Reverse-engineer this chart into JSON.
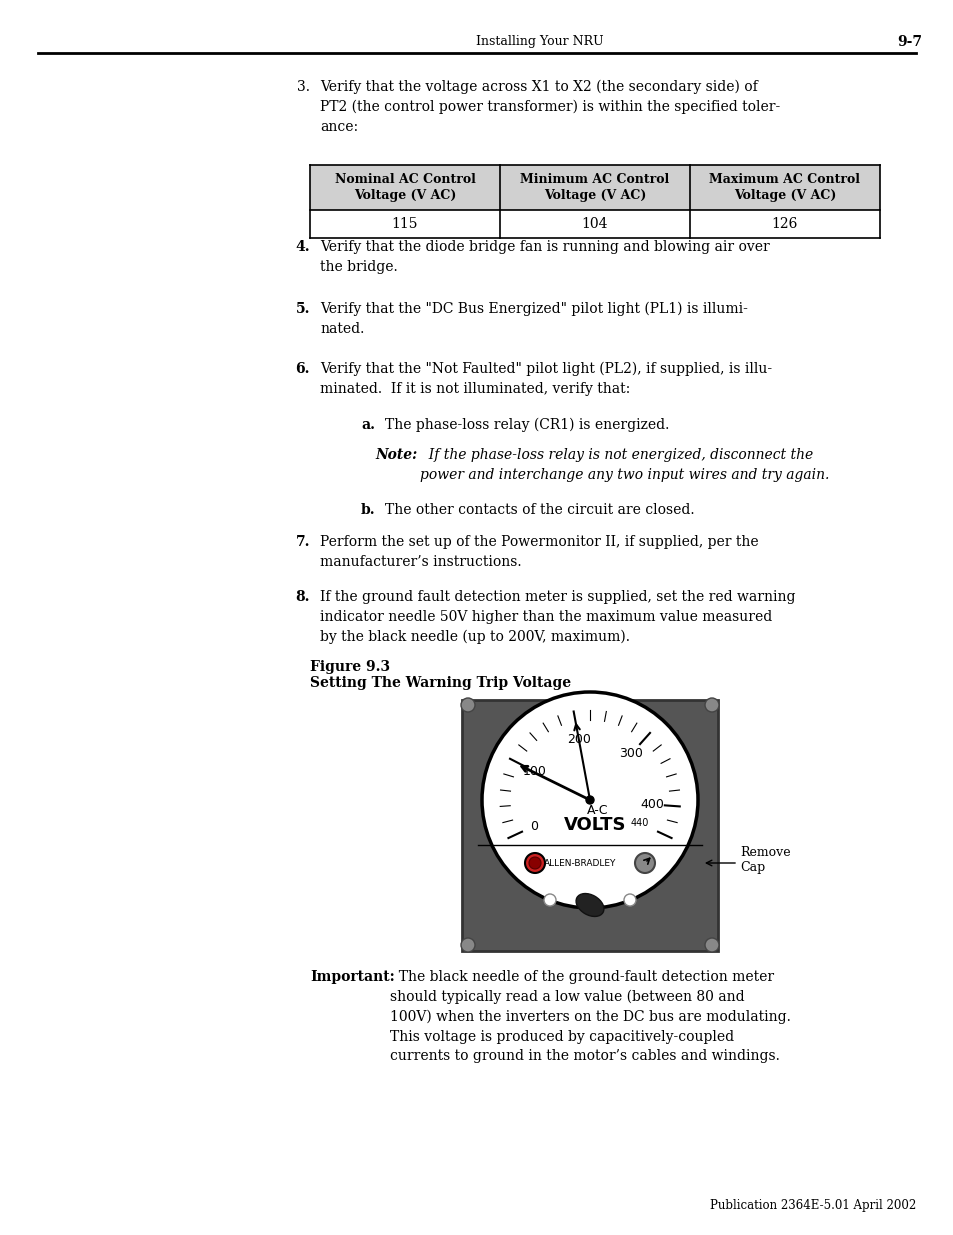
{
  "page_bg": "#ffffff",
  "header_text": "Installing Your NRU",
  "header_page": "9-7",
  "footer_text": "Publication 2364E-5.01 April 2002",
  "table": {
    "headers": [
      "Nominal AC Control\nVoltage (V AC)",
      "Minimum AC Control\nVoltage (V AC)",
      "Maximum AC Control\nVoltage (V AC)"
    ],
    "row": [
      "115",
      "104",
      "126"
    ]
  },
  "items": [
    {
      "num": "3.",
      "text": "Verify that the voltage across X1 to X2 (the secondary side) of\nPT2 (the control power transformer) is within the specified toler-\nance:"
    },
    {
      "num": "4.",
      "text": "Verify that the diode bridge fan is running and blowing air over\nthe bridge."
    },
    {
      "num": "5.",
      "text": "Verify that the \"DC Bus Energized\" pilot light (PL1) is illumi-\nnated."
    },
    {
      "num": "6.",
      "text": "Verify that the \"Not Faulted\" pilot light (PL2), if supplied, is illu-\nminated.  If it is not illuminated, verify that:"
    },
    {
      "num": "a.",
      "text": "The phase-loss relay (CR1) is energized.",
      "indent": true
    },
    {
      "num": "b.",
      "text": "The other contacts of the circuit are closed.",
      "indent": true
    },
    {
      "num": "7.",
      "text": "Perform the set up of the Powermonitor II, if supplied, per the\nmanufacturer’s instructions."
    },
    {
      "num": "8.",
      "text": "If the ground fault detection meter is supplied, set the red warning\nindicator needle 50V higher than the maximum value measured\nby the black needle (up to 200V, maximum)."
    }
  ],
  "note_bold": "Note:",
  "note_italic": "  If the phase-loss relay is not energized, disconnect the\npower and interchange any two input wires and try again.",
  "figure_label": "Figure 9.3",
  "figure_title": "Setting The Warning Trip Voltage",
  "important_bold": "Important:",
  "important_text": "  The black needle of the ground-fault detection meter\nshould typically read a low value (between 80 and\n100V) when the inverters on the DC bus are modulating.\nThis voltage is produced by capacitively-coupled\ncurrents to ground in the motor’s cables and windings."
}
